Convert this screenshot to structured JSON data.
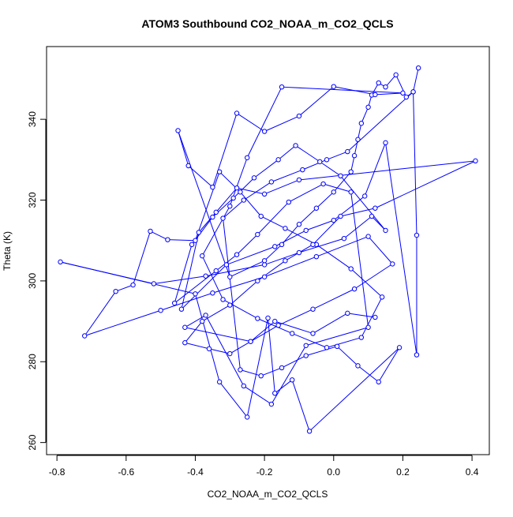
{
  "chart_data": {
    "type": "scatter",
    "title": "ATOM3 Southbound CO2_NOAA_m_CO2_QCLS",
    "xlabel": "CO2_NOAA_m_CO2_QCLS",
    "ylabel": "Theta (K)",
    "xlim": [
      -0.83,
      0.45
    ],
    "ylim": [
      257,
      358
    ],
    "xticks": [
      -0.8,
      -0.6,
      -0.4,
      -0.2,
      0.0,
      0.2,
      0.4
    ],
    "xtick_labels": [
      "-0.8",
      "-0.6",
      "-0.4",
      "-0.2",
      "0.0",
      "0.2",
      "0.4"
    ],
    "yticks": [
      260,
      280,
      300,
      320,
      340
    ],
    "ytick_labels": [
      "260",
      "280",
      "300",
      "320",
      "340"
    ],
    "grid": false,
    "connected": true,
    "marker": "open-circle",
    "color": "#0000ff",
    "x": [
      0.245,
      0.23,
      0.21,
      0.18,
      0.15,
      0.13,
      0.11,
      0.1,
      0.08,
      0.07,
      0.06,
      0.05,
      0.0,
      -0.05,
      -0.1,
      -0.15,
      -0.2,
      -0.3,
      -0.45,
      -0.42,
      -0.35,
      -0.28,
      -0.2,
      -0.1,
      0.0,
      0.12,
      0.2,
      -0.15,
      -0.25,
      -0.3,
      -0.38,
      -0.32,
      -0.22,
      -0.12,
      -0.02,
      0.08,
      0.14,
      0.05,
      -0.05,
      -0.14,
      -0.21,
      -0.27,
      -0.33,
      -0.4,
      -0.48,
      -0.53,
      -0.58,
      -0.63,
      -0.72,
      -0.5,
      -0.35,
      -0.2,
      -0.05,
      0.1,
      0.17,
      0.06,
      -0.06,
      -0.16,
      -0.24,
      -0.3,
      -0.36,
      -0.43,
      -0.38,
      -0.3,
      -0.22,
      -0.14,
      -0.06,
      0.02,
      0.12,
      0.41,
      -0.1,
      -0.2,
      -0.28,
      -0.34,
      -0.39,
      -0.44,
      -0.31,
      -0.17,
      -0.08,
      0.0,
      0.09,
      0.15,
      0.24,
      0.24,
      0.23,
      0.04,
      -0.02,
      -0.09,
      -0.18,
      -0.26,
      -0.32,
      -0.27,
      -0.21,
      -0.15,
      -0.08,
      0.01,
      0.07,
      0.13,
      0.19,
      -0.07,
      -0.12,
      -0.17,
      -0.19,
      -0.25,
      -0.33,
      -0.4,
      -0.79,
      -0.52,
      -0.37,
      -0.2,
      -0.1,
      0.03,
      0.11,
      0.15,
      0.02,
      -0.04,
      -0.11,
      -0.16,
      -0.23,
      -0.29,
      -0.35,
      -0.41,
      -0.46,
      -0.34,
      -0.28,
      -0.22,
      -0.13,
      -0.03,
      0.05,
      0.1,
      -0.08,
      -0.18,
      -0.26,
      -0.37,
      -0.43,
      -0.24,
      -0.17,
      -0.06,
      0.04,
      0.12
    ],
    "y": [
      352.7,
      346.8,
      345.5,
      351.0,
      348.0,
      349.0,
      346.0,
      343.0,
      339.0,
      335.0,
      331.0,
      327.0,
      322.0,
      318.0,
      314.0,
      309.0,
      305.0,
      301.0,
      337.2,
      328.5,
      323.2,
      341.5,
      337.0,
      340.8,
      348.1,
      346.1,
      346.5,
      348.0,
      330.5,
      318.5,
      306.2,
      295.4,
      290.7,
      287.0,
      283.5,
      286.0,
      296.0,
      303.0,
      309.0,
      313.0,
      316.0,
      322.0,
      327.0,
      310.0,
      310.2,
      312.3,
      299.0,
      297.4,
      286.4,
      292.7,
      297.0,
      301.0,
      306.0,
      311.0,
      304.2,
      298.0,
      293.0,
      289.0,
      285.0,
      282.0,
      283.2,
      284.7,
      290.0,
      294.0,
      300.0,
      305.0,
      309.0,
      316.0,
      318.0,
      329.7,
      325.0,
      321.5,
      323.0,
      317.0,
      312.0,
      293.0,
      304.0,
      308.5,
      312.5,
      315.0,
      321.0,
      334.2,
      281.7,
      311.3,
      346.8,
      332.0,
      330.0,
      327.5,
      324.5,
      320.0,
      315.5,
      278.0,
      276.5,
      278.5,
      281.5,
      283.8,
      279.0,
      275.0,
      283.5,
      262.8,
      275.5,
      272.2,
      290.8,
      266.3,
      275.0,
      296.8,
      304.7,
      299.3,
      301.2,
      304.0,
      307.0,
      310.5,
      316.0,
      312.5,
      326.0,
      329.5,
      333.5,
      330.0,
      325.5,
      320.5,
      315.8,
      309.0,
      294.5,
      302.5,
      306.5,
      311.5,
      319.5,
      324.0,
      322.0,
      288.5,
      284.0,
      269.5,
      274.0,
      291.5,
      288.5,
      285.0,
      290.0,
      287.0,
      292.0,
      291.0
    ]
  }
}
